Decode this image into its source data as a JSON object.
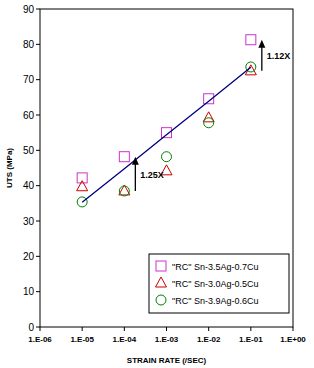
{
  "chart_data": {
    "type": "scatter",
    "x_label": "STRAIN RATE (/SEC)",
    "y_label": "UTS (MPa)",
    "log": "x",
    "grid": false,
    "legend": "lower right",
    "x": [
      1e-05,
      0.0001,
      0.001,
      0.01,
      0.1
    ],
    "xlim": [
      1e-06,
      1
    ],
    "xticks": [
      {
        "value": 1e-06,
        "label": "1.E-06"
      },
      {
        "value": 1e-05,
        "label": "1.E-05"
      },
      {
        "value": 0.0001,
        "label": "1.E-04"
      },
      {
        "value": 0.001,
        "label": "1.E-03"
      },
      {
        "value": 0.01,
        "label": "1.E-02"
      },
      {
        "value": 0.1,
        "label": "1.E-01"
      },
      {
        "value": 1,
        "label": "1.E+00"
      }
    ],
    "ylim": [
      0,
      90
    ],
    "yticks": [
      0,
      10,
      20,
      30,
      40,
      50,
      60,
      70,
      80,
      90
    ],
    "series": [
      {
        "name": "\"RC\" Sn-3.5Ag-0.7Cu",
        "color": "#cc33cc",
        "marker": "square",
        "line_style": "none",
        "values": [
          42.2,
          48.2,
          55.0,
          64.6,
          81.3
        ]
      },
      {
        "name": "\"RC\" Sn-3.0Ag-0.5Cu",
        "color": "#cc0000",
        "marker": "triangle",
        "line_style": "none",
        "values": [
          39.7,
          38.5,
          44.2,
          59.2,
          72.5
        ]
      },
      {
        "name": "\"RC\" Sn-3.9Ag-0.6Cu",
        "color": "#008000",
        "marker": "circle",
        "line_style": "none",
        "values": [
          35.4,
          38.5,
          48.2,
          57.8,
          73.6
        ]
      },
      {
        "type": "line",
        "color": "#000080",
        "marker": "none",
        "line_style": "solid",
        "values": [
          35.3,
          44.8,
          54.4,
          63.9,
          73.5
        ]
      }
    ],
    "annotations": [
      {
        "text": "1.25X",
        "x": 0.0001,
        "y_from": 38.5,
        "y_to": 48.2
      },
      {
        "text": "1.12X",
        "x": 0.1,
        "y_from": 72.5,
        "y_to": 81.3
      }
    ]
  }
}
